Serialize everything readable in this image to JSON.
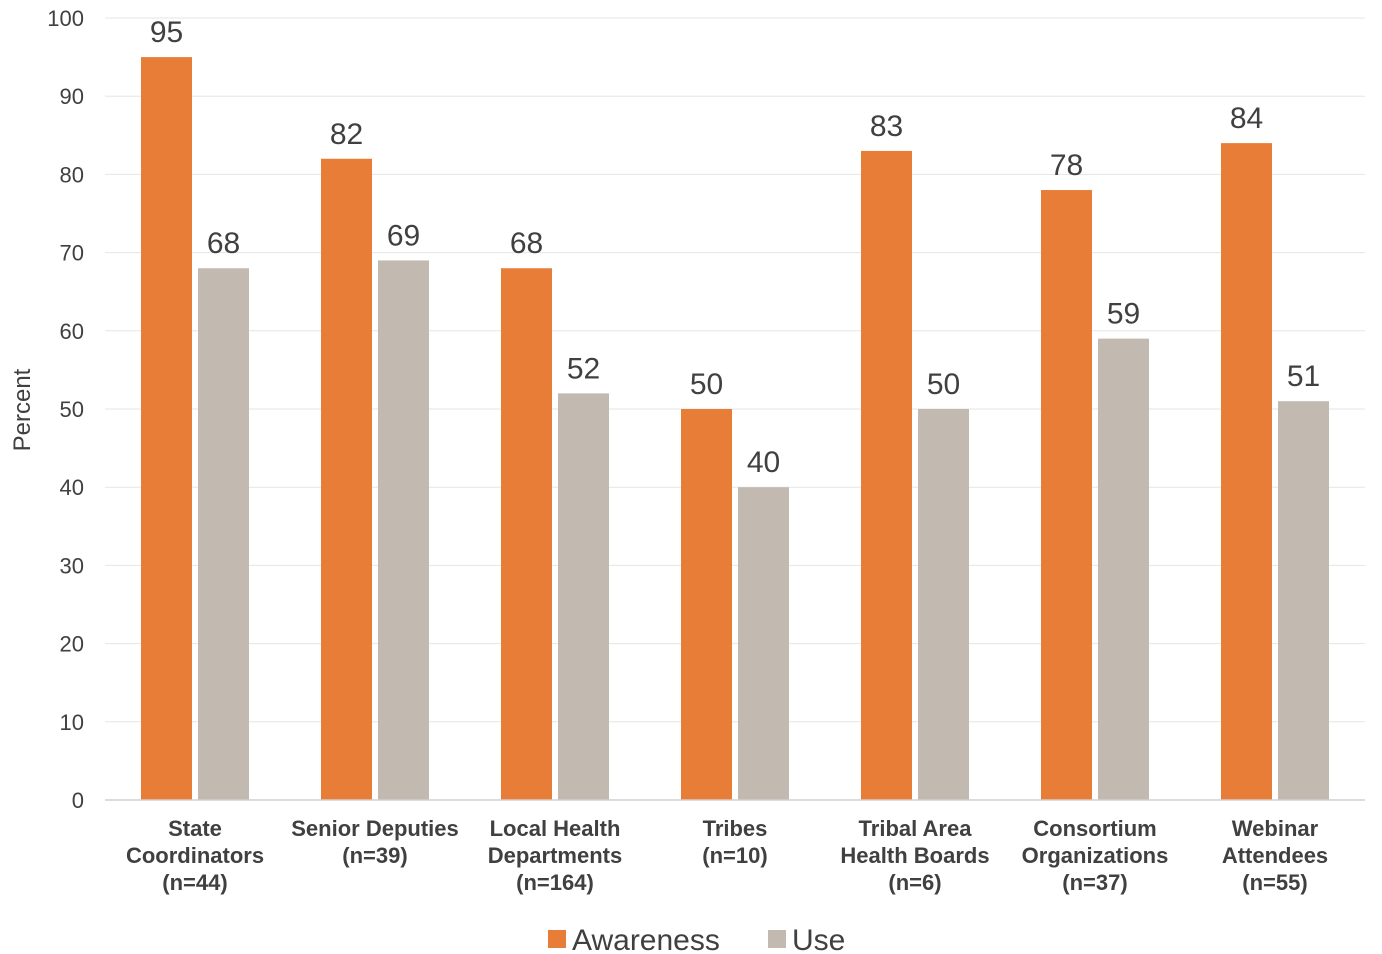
{
  "chart_data": {
    "type": "bar",
    "title": "",
    "xlabel": "",
    "ylabel": "Percent",
    "ylim": [
      0,
      100
    ],
    "yticks": [
      0,
      10,
      20,
      30,
      40,
      50,
      60,
      70,
      80,
      90,
      100
    ],
    "grid": true,
    "legend_position": "bottom",
    "categories": [
      [
        "State",
        "Coordinators",
        "(n=44)"
      ],
      [
        "Senior Deputies",
        "(n=39)"
      ],
      [
        "Local Health",
        "Departments",
        "(n=164)"
      ],
      [
        "Tribes",
        "(n=10)"
      ],
      [
        "Tribal Area",
        "Health Boards",
        "(n=6)"
      ],
      [
        "Consortium",
        "Organizations",
        "(n=37)"
      ],
      [
        "Webinar",
        "Attendees",
        "(n=55)"
      ]
    ],
    "series": [
      {
        "name": "Awareness",
        "color": "#E87D37",
        "values": [
          95,
          82,
          68,
          50,
          83,
          78,
          84
        ]
      },
      {
        "name": "Use",
        "color": "#C2BAB0",
        "values": [
          68,
          69,
          52,
          40,
          50,
          59,
          51
        ]
      }
    ]
  }
}
